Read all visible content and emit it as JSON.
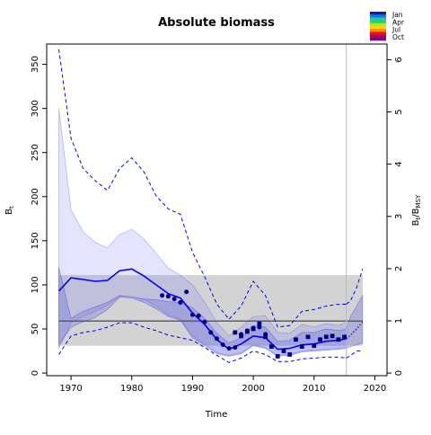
{
  "chart_data": {
    "type": "line",
    "title": "Absolute biomass",
    "xlabel": "Time",
    "ylabel_left": "Bt",
    "ylabel_right": "Bt/BMSY",
    "xlim": [
      1966,
      2022
    ],
    "ylim_left": [
      -3,
      373
    ],
    "ylim_right": [
      -0.05,
      6.3
    ],
    "x_ticks": [
      1970,
      1980,
      1990,
      2000,
      2010,
      2020
    ],
    "y_left_ticks": [
      0,
      50,
      100,
      150,
      200,
      250,
      300,
      350
    ],
    "y_right_ticks": [
      0,
      1,
      2,
      3,
      4,
      5,
      6
    ],
    "vline_x": 2015.3,
    "bmsy": 59,
    "bmsy_band": [
      31,
      111
    ],
    "projection_start": 2015.3,
    "legend": {
      "placement": "top-right",
      "labels": [
        "Jan",
        "Apr",
        "Jul",
        "Oct"
      ],
      "colors": [
        "#2a10a8",
        "#0a7bd6",
        "#19c7c7",
        "#32d24a",
        "#aee632",
        "#ffd500",
        "#ff8a00",
        "#f01010",
        "#b00060",
        "#7a0a8a"
      ]
    },
    "years": [
      1968,
      1970,
      1972,
      1974,
      1976,
      1978,
      1980,
      1982,
      1984,
      1986,
      1988,
      1990,
      1992,
      1994,
      1996,
      1998,
      2000,
      2002,
      2004,
      2006,
      2008,
      2010,
      2012,
      2014,
      2015.3
    ],
    "projection_years": [
      2015.3,
      2016,
      2017,
      2018
    ],
    "biomass_median": [
      93,
      108,
      106,
      104,
      105,
      116,
      118,
      110,
      100,
      90,
      85,
      68,
      55,
      38,
      27,
      33,
      42,
      40,
      27,
      28,
      32,
      33,
      36,
      37,
      39
    ],
    "biomass_proj": [
      39,
      43,
      50,
      58
    ],
    "ci_inner_upper": [
      120,
      62,
      70,
      75,
      80,
      88,
      86,
      84,
      83,
      81,
      80,
      74,
      62,
      45,
      34,
      40,
      54,
      52,
      36,
      37,
      46,
      46,
      50,
      48,
      50
    ],
    "ci_inner_lower": [
      32,
      52,
      58,
      63,
      72,
      86,
      85,
      80,
      73,
      64,
      60,
      40,
      31,
      22,
      19,
      22,
      31,
      28,
      19,
      20,
      24,
      25,
      26,
      27,
      28
    ],
    "ci_proj_upper": [
      50,
      64,
      76,
      88
    ],
    "ci_proj_lower": [
      28,
      30,
      32,
      34
    ],
    "ci_outer_upper": [
      300,
      185,
      160,
      148,
      142,
      157,
      163,
      152,
      136,
      119,
      111,
      100,
      80,
      57,
      42,
      52,
      64,
      65,
      46,
      45,
      55,
      52,
      56,
      54,
      57
    ],
    "ci_outer_lower": [
      28,
      57,
      64,
      70,
      77,
      87,
      87,
      83,
      76,
      66,
      61,
      42,
      33,
      23,
      20,
      23,
      32,
      29,
      20,
      21,
      25,
      26,
      27,
      28,
      29
    ],
    "upper_dashed": [
      367,
      266,
      232,
      218,
      207,
      232,
      244,
      228,
      201,
      186,
      180,
      137,
      109,
      78,
      61,
      76,
      104,
      88,
      52,
      54,
      70,
      72,
      76,
      78,
      78
    ],
    "upper_dashed_proj": [
      78,
      82,
      97,
      118
    ],
    "lower_dashed": [
      21,
      42,
      46,
      48,
      52,
      57,
      57,
      52,
      48,
      43,
      40,
      37,
      29,
      20,
      12,
      17,
      25,
      21,
      13,
      13,
      16,
      17,
      18,
      18,
      17
    ],
    "lower_dashed_proj": [
      17,
      20,
      25,
      25
    ],
    "observations_circle": {
      "x": [
        1985,
        1986,
        1987,
        1988,
        1989,
        1990,
        1991,
        1992,
        1993,
        1994,
        1995,
        1996,
        1997,
        1998,
        1999,
        2000,
        2001,
        2002
      ],
      "y": [
        88,
        87,
        84,
        80,
        92,
        66,
        65,
        58,
        46,
        39,
        32,
        28,
        29,
        44,
        48,
        51,
        52,
        44
      ]
    },
    "observations_square": {
      "x": [
        1997,
        1998,
        1999,
        2000,
        2001,
        2002,
        2003,
        2004,
        2005,
        2006,
        2007,
        2008,
        2009,
        2010,
        2011,
        2012,
        2013,
        2014,
        2015
      ],
      "y": [
        46,
        42,
        47,
        50,
        56,
        41,
        30,
        19,
        25,
        21,
        38,
        30,
        41,
        31,
        38,
        41,
        42,
        38,
        41
      ]
    }
  }
}
